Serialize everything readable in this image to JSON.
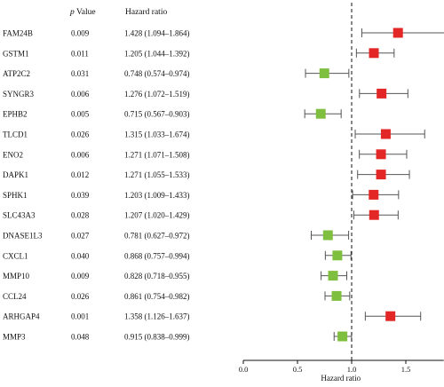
{
  "chart_data": {
    "type": "forest",
    "header": {
      "p_prefix": "p",
      "p_suffix": " Value",
      "hazard_col": "Hazard ratio"
    },
    "xlabel": "Hazard ratio",
    "xlim": [
      0,
      1.85
    ],
    "xticks": [
      0.0,
      0.5,
      1.0,
      1.5
    ],
    "xtick_labels": [
      "0.0",
      "0.5",
      "1.0",
      "1.5"
    ],
    "reference_line": 1.0,
    "colors": {
      "risk": "#e32626",
      "protective": "#7fbf3f",
      "ci": "#555555"
    },
    "rows": [
      {
        "gene": "FAM24B",
        "p": "0.009",
        "hr_text": "1.428 (1.094–1.864)",
        "hr": 1.428,
        "lo": 1.094,
        "hi": 1.864
      },
      {
        "gene": "GSTM1",
        "p": "0.011",
        "hr_text": "1.205 (1.044–1.392)",
        "hr": 1.205,
        "lo": 1.044,
        "hi": 1.392
      },
      {
        "gene": "ATP2C2",
        "p": "0.031",
        "hr_text": "0.748 (0.574–0.974)",
        "hr": 0.748,
        "lo": 0.574,
        "hi": 0.974
      },
      {
        "gene": "SYNGR3",
        "p": "0.006",
        "hr_text": "1.276 (1.072–1.519)",
        "hr": 1.276,
        "lo": 1.072,
        "hi": 1.519
      },
      {
        "gene": "EPHB2",
        "p": "0.005",
        "hr_text": "0.715 (0.567–0.903)",
        "hr": 0.715,
        "lo": 0.567,
        "hi": 0.903
      },
      {
        "gene": "TLCD1",
        "p": "0.026",
        "hr_text": "1.315 (1.033–1.674)",
        "hr": 1.315,
        "lo": 1.033,
        "hi": 1.674
      },
      {
        "gene": "ENO2",
        "p": "0.006",
        "hr_text": "1.271 (1.071–1.508)",
        "hr": 1.271,
        "lo": 1.071,
        "hi": 1.508
      },
      {
        "gene": "DAPK1",
        "p": "0.012",
        "hr_text": "1.271 (1.055–1.533)",
        "hr": 1.271,
        "lo": 1.055,
        "hi": 1.533
      },
      {
        "gene": "SPHK1",
        "p": "0.039",
        "hr_text": "1.203 (1.009–1.433)",
        "hr": 1.203,
        "lo": 1.009,
        "hi": 1.433
      },
      {
        "gene": "SLC43A3",
        "p": "0.028",
        "hr_text": "1.207 (1.020–1.429)",
        "hr": 1.207,
        "lo": 1.02,
        "hi": 1.429
      },
      {
        "gene": "DNASE1L3",
        "p": "0.027",
        "hr_text": "0.781 (0.627–0.972)",
        "hr": 0.781,
        "lo": 0.627,
        "hi": 0.972
      },
      {
        "gene": "CXCL1",
        "p": "0.040",
        "hr_text": "0.868 (0.757–0.994)",
        "hr": 0.868,
        "lo": 0.757,
        "hi": 0.994
      },
      {
        "gene": "MMP10",
        "p": "0.009",
        "hr_text": "0.828 (0.718–0.955)",
        "hr": 0.828,
        "lo": 0.718,
        "hi": 0.955
      },
      {
        "gene": "CCL24",
        "p": "0.026",
        "hr_text": "0.861 (0.754–0.982)",
        "hr": 0.861,
        "lo": 0.754,
        "hi": 0.982
      },
      {
        "gene": "ARHGAP4",
        "p": "0.001",
        "hr_text": "1.358 (1.126–1.637)",
        "hr": 1.358,
        "lo": 1.126,
        "hi": 1.637
      },
      {
        "gene": "MMP3",
        "p": "0.048",
        "hr_text": "0.915 (0.838–0.999)",
        "hr": 0.915,
        "lo": 0.838,
        "hi": 0.999
      }
    ]
  }
}
